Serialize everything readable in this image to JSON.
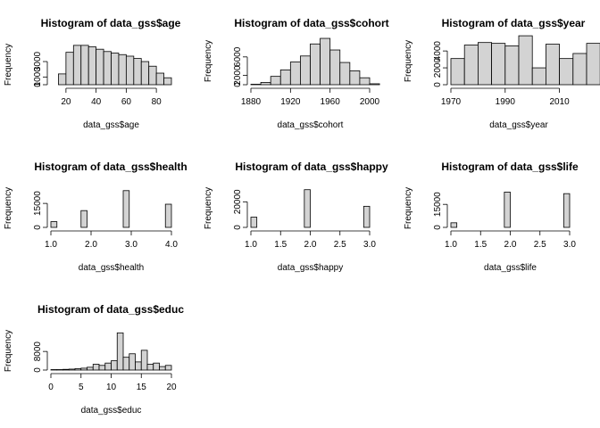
{
  "chart_data": [
    {
      "type": "bar",
      "title": "Histogram of data_gss$age",
      "xlabel": "data_gss$age",
      "ylabel": "Frequency",
      "xlim": [
        10,
        90
      ],
      "ylim": [
        0,
        5200
      ],
      "bin_width": 5,
      "x_start": 15,
      "values": [
        1400,
        4200,
        5100,
        5100,
        4900,
        4600,
        4300,
        4100,
        3900,
        3700,
        3400,
        3000,
        2400,
        1500,
        900
      ],
      "xticks": [
        20,
        40,
        60,
        80
      ],
      "yticks": [
        0,
        1000,
        3000
      ]
    },
    {
      "type": "bar",
      "title": "Histogram of data_gss$cohort",
      "xlabel": "data_gss$cohort",
      "ylabel": "Frequency",
      "xlim": [
        1880,
        2000
      ],
      "ylim": [
        0,
        10200
      ],
      "bin_width": 10,
      "x_start": 1880,
      "values": [
        100,
        500,
        1800,
        3200,
        4900,
        6200,
        8800,
        10000,
        7500,
        4800,
        3000,
        1500,
        200
      ],
      "xticks": [
        1880,
        1920,
        1960,
        2000
      ],
      "yticks": [
        0,
        2000,
        6000
      ]
    },
    {
      "type": "bar",
      "title": "Histogram of data_gss$year",
      "xlabel": "data_gss$year",
      "ylabel": "Frequency",
      "xlim": [
        1970,
        2020
      ],
      "ylim": [
        0,
        5600
      ],
      "bin_width": 5,
      "x_start": 1970,
      "values": [
        3100,
        4700,
        5000,
        4900,
        4600,
        5800,
        2000,
        4800,
        3100,
        3700,
        4900
      ],
      "xticks": [
        1970,
        1990,
        2010
      ],
      "yticks": [
        0,
        2000,
        4000
      ]
    },
    {
      "type": "bar",
      "title": "Histogram of data_gss$health",
      "xlabel": "data_gss$health",
      "ylabel": "Frequency",
      "xlim": [
        1.0,
        4.0
      ],
      "ylim": [
        0,
        24000
      ],
      "bin_width": 0.15,
      "x_start": 1.0,
      "values": [
        3600,
        0,
        0,
        0,
        0,
        10500,
        0,
        0,
        0,
        0,
        0,
        0,
        23000,
        0,
        0,
        0,
        0,
        0,
        0,
        14500
      ],
      "xticks": [
        "1.0",
        "2.0",
        "3.0",
        "4.0"
      ],
      "xtick_vals": [
        1,
        2,
        3,
        4
      ],
      "yticks": [
        0,
        15000
      ]
    },
    {
      "type": "bar",
      "title": "Histogram of data_gss$happy",
      "xlabel": "data_gss$happy",
      "ylabel": "Frequency",
      "xlim": [
        1.0,
        3.0
      ],
      "ylim": [
        0,
        30000
      ],
      "bin_width": 0.1,
      "x_start": 1.0,
      "values": [
        8000,
        0,
        0,
        0,
        0,
        0,
        0,
        0,
        0,
        29500,
        0,
        0,
        0,
        0,
        0,
        0,
        0,
        0,
        0,
        16500
      ],
      "xticks": [
        "1.0",
        "1.5",
        "2.0",
        "2.5",
        "3.0"
      ],
      "xtick_vals": [
        1,
        1.5,
        2,
        2.5,
        3
      ],
      "yticks": [
        0,
        20000
      ]
    },
    {
      "type": "bar",
      "title": "Histogram of data_gss$life",
      "xlabel": "data_gss$life",
      "ylabel": "Frequency",
      "xlim": [
        1.0,
        3.0
      ],
      "ylim": [
        0,
        25000
      ],
      "bin_width": 0.1,
      "x_start": 1.0,
      "values": [
        3000,
        0,
        0,
        0,
        0,
        0,
        0,
        0,
        0,
        23000,
        0,
        0,
        0,
        0,
        0,
        0,
        0,
        0,
        0,
        22000
      ],
      "xticks": [
        "1.0",
        "1.5",
        "2.0",
        "2.5",
        "3.0"
      ],
      "xtick_vals": [
        1,
        1.5,
        2,
        2.5,
        3
      ],
      "yticks": [
        0,
        15000
      ]
    },
    {
      "type": "bar",
      "title": "Histogram of data_gss$educ",
      "xlabel": "data_gss$educ",
      "ylabel": "Frequency",
      "xlim": [
        0,
        20
      ],
      "ylim": [
        0,
        16500
      ],
      "bin_width": 1,
      "x_start": 0,
      "values": [
        200,
        200,
        300,
        400,
        600,
        800,
        1200,
        2500,
        2000,
        3000,
        4000,
        16000,
        5500,
        7000,
        3500,
        8500,
        2500,
        3000,
        1500,
        2000
      ],
      "xticks": [
        0,
        5,
        10,
        15,
        20
      ],
      "yticks": [
        0,
        8000
      ]
    }
  ]
}
